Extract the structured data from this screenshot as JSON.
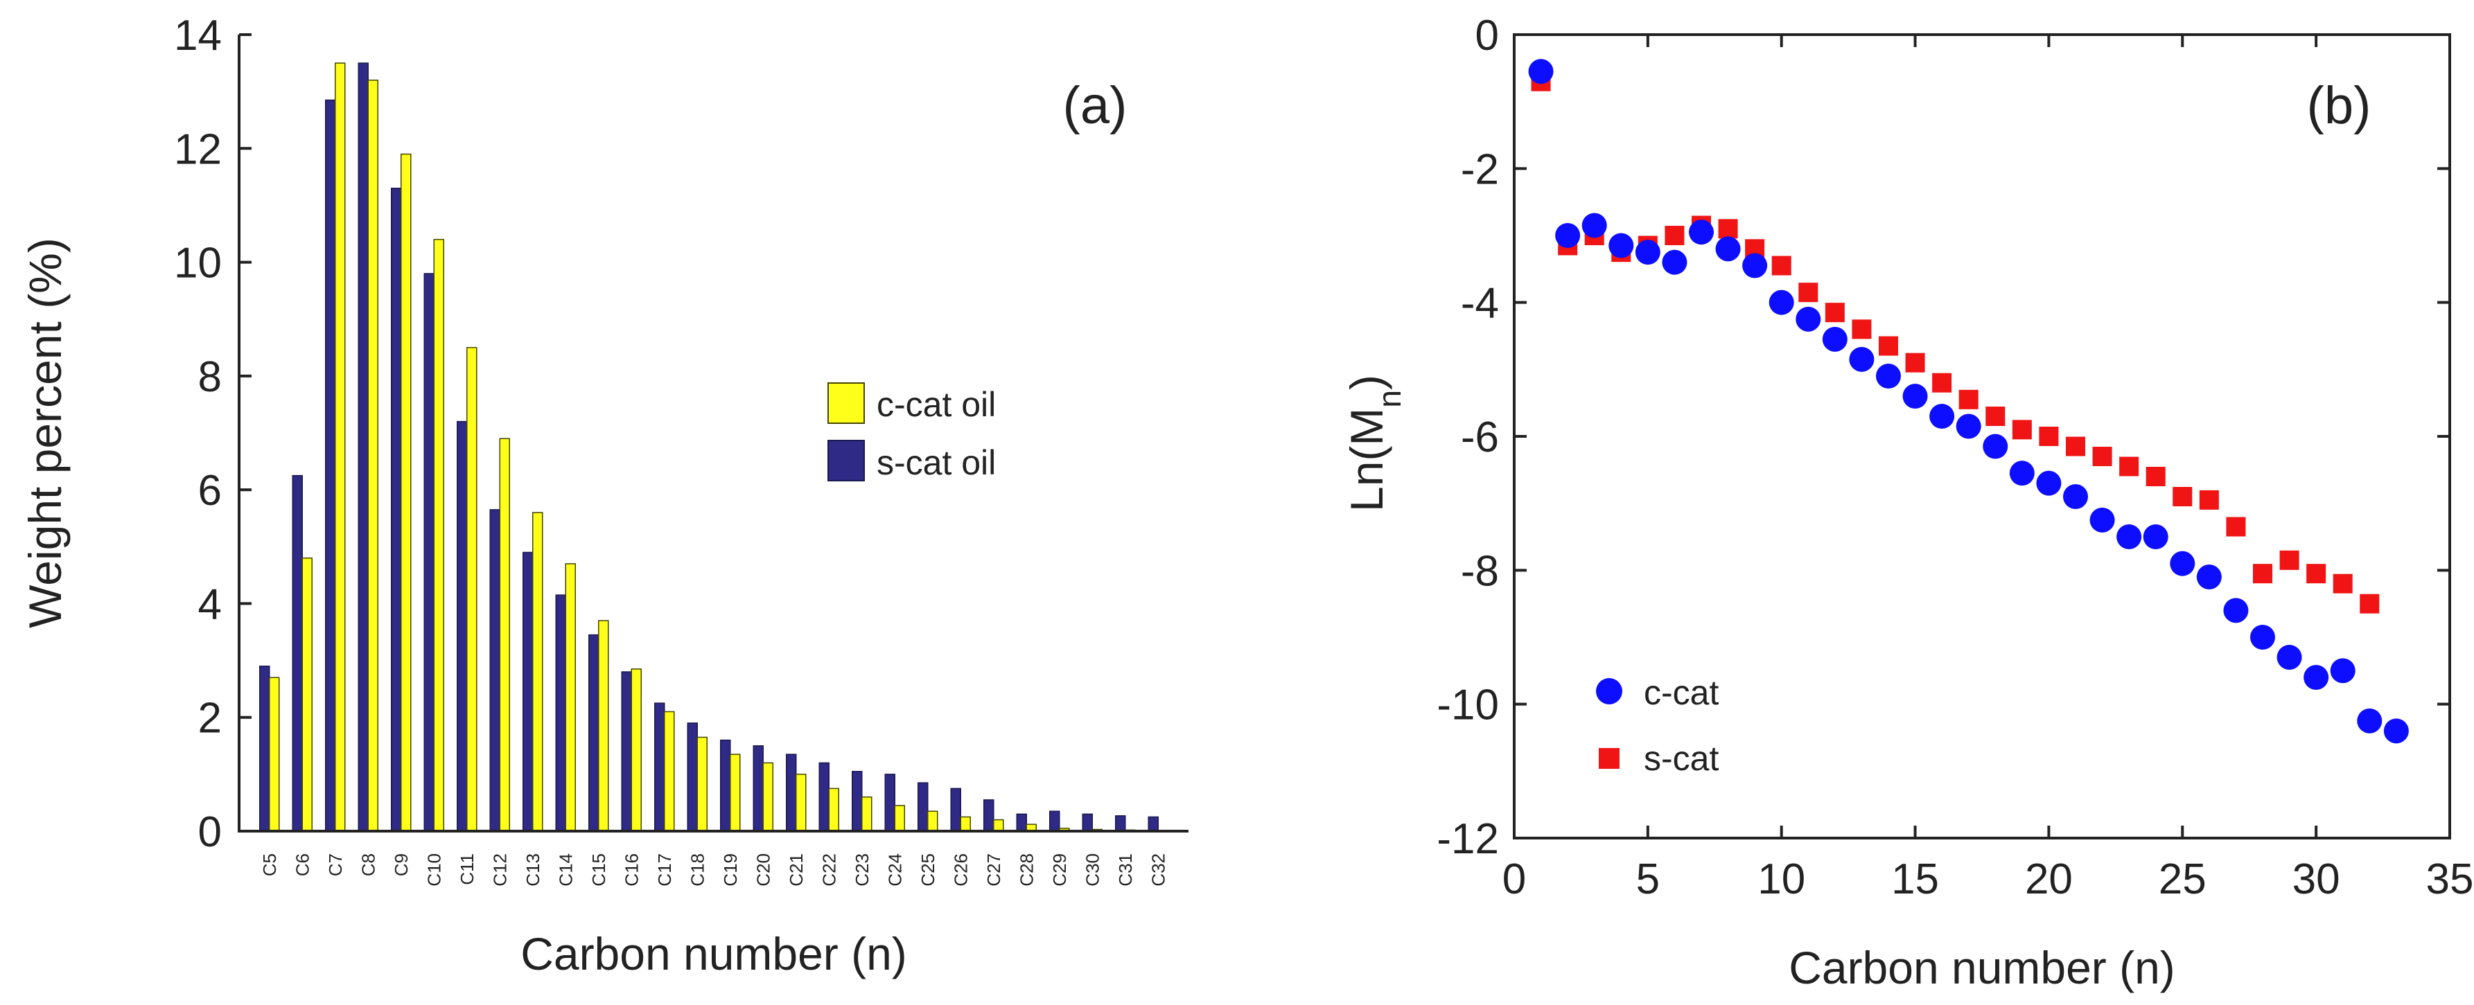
{
  "colors": {
    "c_cat_bar": "#ffff1a",
    "s_cat_bar": "#2e2a85",
    "c_cat_marker": "#0d0dff",
    "s_cat_marker": "#f01414",
    "axis": "#222222"
  },
  "chart_data": [
    {
      "type": "bar",
      "panel_label": "(a)",
      "title": "",
      "xlabel": "Carbon number (n)",
      "ylabel": "Weight percent (%)",
      "ylim": [
        0,
        14
      ],
      "yticks": [
        "0",
        "2",
        "4",
        "6",
        "8",
        "10",
        "12",
        "14"
      ],
      "legend_position": "right-middle",
      "categories": [
        "C5",
        "C6",
        "C7",
        "C8",
        "C9",
        "C10",
        "C11",
        "C12",
        "C13",
        "C14",
        "C15",
        "C16",
        "C17",
        "C18",
        "C19",
        "C20",
        "C21",
        "C22",
        "C23",
        "C24",
        "C25",
        "C26",
        "C27",
        "C28",
        "C29",
        "C30",
        "C31",
        "C32"
      ],
      "series": [
        {
          "name": "s-cat oil",
          "color": "#2e2a85",
          "values": [
            2.9,
            6.25,
            12.85,
            13.5,
            11.3,
            9.8,
            7.2,
            5.65,
            4.9,
            4.15,
            3.45,
            2.8,
            2.25,
            1.9,
            1.6,
            1.5,
            1.35,
            1.2,
            1.05,
            1.0,
            0.85,
            0.75,
            0.55,
            0.3,
            0.35,
            0.3,
            0.27,
            0.25
          ]
        },
        {
          "name": "c-cat oil",
          "color": "#ffff1a",
          "values": [
            2.7,
            4.8,
            13.5,
            13.2,
            11.9,
            10.4,
            8.5,
            6.9,
            5.6,
            4.7,
            3.7,
            2.85,
            2.1,
            1.65,
            1.35,
            1.2,
            1.0,
            0.75,
            0.6,
            0.45,
            0.35,
            0.25,
            0.2,
            0.12,
            0.05,
            0.03,
            0.02,
            0.01
          ]
        }
      ]
    },
    {
      "type": "scatter",
      "panel_label": "(b)",
      "title": "",
      "xlabel": "Carbon number (n)",
      "ylabel": "Ln(M_n)",
      "ylabel_main": "Ln(M",
      "ylabel_sub": "n",
      "ylabel_close": ")",
      "xlim": [
        0,
        35
      ],
      "ylim": [
        -12,
        0
      ],
      "xticks": [
        "0",
        "5",
        "10",
        "15",
        "20",
        "25",
        "30",
        "35"
      ],
      "yticks": [
        "-12",
        "-10",
        "-8",
        "-6",
        "-4",
        "-2",
        "0"
      ],
      "legend_position": "bottom-left",
      "series": [
        {
          "name": "c-cat",
          "marker": "circle",
          "color": "#0d0dff",
          "x": [
            1,
            2,
            3,
            4,
            5,
            6,
            7,
            8,
            9,
            10,
            11,
            12,
            13,
            14,
            15,
            16,
            17,
            18,
            19,
            20,
            21,
            22,
            23,
            24,
            25,
            26,
            27,
            28,
            29,
            30,
            31,
            32,
            33
          ],
          "y": [
            -0.55,
            -3.0,
            -2.85,
            -3.15,
            -3.25,
            -3.4,
            -2.95,
            -3.2,
            -3.45,
            -4.0,
            -4.25,
            -4.55,
            -4.85,
            -5.1,
            -5.4,
            -5.7,
            -5.85,
            -6.15,
            -6.55,
            -6.7,
            -6.9,
            -7.25,
            -7.5,
            -7.5,
            -7.9,
            -8.1,
            -8.6,
            -9.0,
            -9.3,
            -9.6,
            -9.5,
            -10.25,
            -10.4
          ]
        },
        {
          "name": "s-cat",
          "marker": "square",
          "color": "#f01414",
          "x": [
            1,
            2,
            3,
            4,
            5,
            6,
            7,
            8,
            9,
            10,
            11,
            12,
            13,
            14,
            15,
            16,
            17,
            18,
            19,
            20,
            21,
            22,
            23,
            24,
            25,
            26,
            27,
            28,
            29,
            30,
            31,
            32
          ],
          "y": [
            -0.7,
            -3.15,
            -3.0,
            -3.25,
            -3.15,
            -3.0,
            -2.85,
            -2.9,
            -3.2,
            -3.45,
            -3.85,
            -4.15,
            -4.4,
            -4.65,
            -4.9,
            -5.2,
            -5.45,
            -5.7,
            -5.9,
            -6.0,
            -6.15,
            -6.3,
            -6.45,
            -6.6,
            -6.9,
            -6.95,
            -7.35,
            -8.05,
            -7.85,
            -8.05,
            -8.2,
            -8.5
          ]
        }
      ]
    }
  ]
}
